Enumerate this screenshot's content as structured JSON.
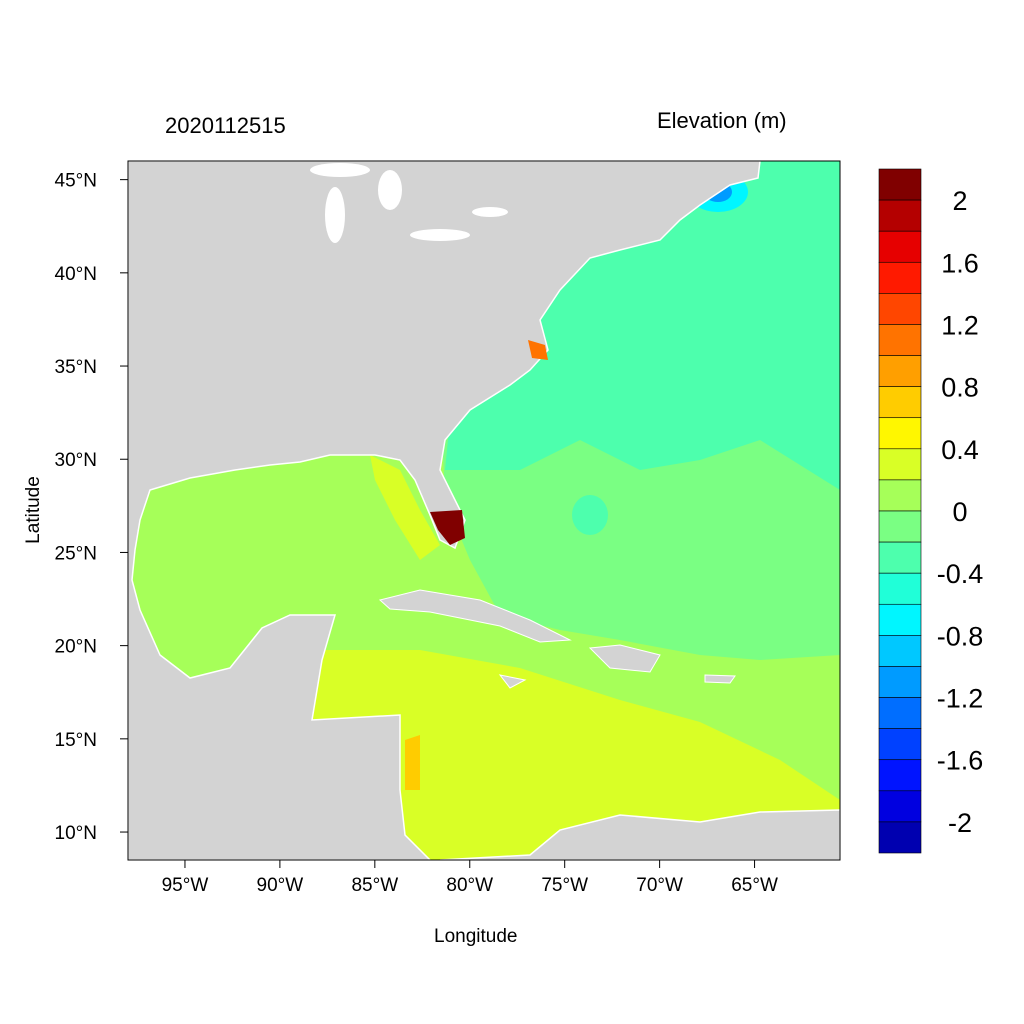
{
  "title_left": "2020112515",
  "title_right": "Elevation (m)",
  "xlabel": "Longitude",
  "ylabel": "Latitude",
  "colors": {
    "land": "#d3d3d3",
    "coast": "#ffffff"
  },
  "chart_data": {
    "type": "heatmap",
    "title": "2020112515",
    "variable": "Elevation (m)",
    "xlabel": "Longitude",
    "ylabel": "Latitude",
    "xlim": [
      -98,
      -60.5
    ],
    "ylim": [
      8.5,
      46
    ],
    "x_ticks": [
      {
        "value": -95,
        "label": "95°W"
      },
      {
        "value": -90,
        "label": "90°W"
      },
      {
        "value": -85,
        "label": "85°W"
      },
      {
        "value": -80,
        "label": "80°W"
      },
      {
        "value": -75,
        "label": "75°W"
      },
      {
        "value": -70,
        "label": "70°W"
      },
      {
        "value": -65,
        "label": "65°W"
      }
    ],
    "y_ticks": [
      {
        "value": 45,
        "label": "45°N"
      },
      {
        "value": 40,
        "label": "40°N"
      },
      {
        "value": 35,
        "label": "35°N"
      },
      {
        "value": 30,
        "label": "30°N"
      },
      {
        "value": 25,
        "label": "25°N"
      },
      {
        "value": 20,
        "label": "20°N"
      },
      {
        "value": 15,
        "label": "15°N"
      },
      {
        "value": 10,
        "label": "10°N"
      }
    ],
    "colorbar": {
      "levels": [
        2.2,
        2.0,
        1.8,
        1.6,
        1.4,
        1.2,
        1.0,
        0.8,
        0.6,
        0.4,
        0.2,
        0,
        -0.2,
        -0.4,
        -0.6,
        -0.8,
        -1.0,
        -1.2,
        -1.4,
        -1.6,
        -1.8,
        -2.0,
        -2.2
      ],
      "colors": [
        "#800000",
        "#b40000",
        "#e60000",
        "#ff1a00",
        "#ff4600",
        "#ff7300",
        "#ff9f00",
        "#ffcc00",
        "#fff700",
        "#d9ff26",
        "#a6ff59",
        "#7aff83",
        "#4dffad",
        "#20ffd8",
        "#00f6ff",
        "#00c8ff",
        "#009bff",
        "#006eff",
        "#0041ff",
        "#0014ff",
        "#0000e0",
        "#0000b0"
      ],
      "labels": [
        {
          "value": 2,
          "label": "2"
        },
        {
          "value": 1.6,
          "label": "1.6"
        },
        {
          "value": 1.2,
          "label": "1.2"
        },
        {
          "value": 0.8,
          "label": "0.8"
        },
        {
          "value": 0.4,
          "label": "0.4"
        },
        {
          "value": 0,
          "label": "0"
        },
        {
          "value": -0.4,
          "label": "-0.4"
        },
        {
          "value": -0.8,
          "label": "-0.8"
        },
        {
          "value": -1.2,
          "label": "-1.2"
        },
        {
          "value": -1.6,
          "label": "-1.6"
        },
        {
          "value": -2,
          "label": "-2"
        }
      ]
    }
  }
}
